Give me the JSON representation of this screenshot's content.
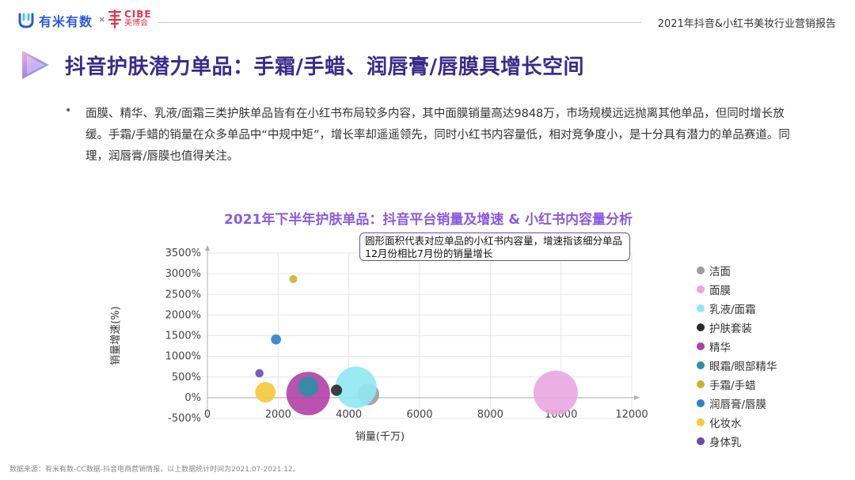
{
  "header": {
    "brand_name": "有米有数",
    "separator": "×",
    "partner_brand_en": "CIBE",
    "partner_brand_cn": "美博会",
    "report_title": "2021年抖音&小红书美妆行业营销报告"
  },
  "page": {
    "title": "抖音护肤潜力单品：手霜/手蜡、润唇膏/唇膜具增长空间",
    "bullet": "面膜、精华、乳液/面霜三类护肤单品皆有在小红书布局较多内容，其中面膜销量高达9848万，市场规模远远抛离其他单品，但同时增长放缓。手霜/手蜡的销量在众多单品中“中规中矩”，增长率却遥遥领先，同时小红书内容量低，相对竞争度小，是十分具有潜力的单品赛道。同理，润唇膏/唇膜也值得关注。"
  },
  "callout": {
    "text": "圆形面积代表对应单品的小红书内容量，增速指该细分单品12月份相比7月份的销量增长"
  },
  "footer": {
    "source": "数据来源：有米有数-CC数据-抖音电商营销情报，以上数据统计时间为2021.07-2021.12。"
  },
  "chart_data": {
    "type": "scatter",
    "title": "2021年下半年护肤单品：抖音平台销量及增速 & 小红书内容量分析",
    "xlabel": "销量(千万)",
    "ylabel": "销量增速(%)",
    "xlim": [
      0,
      12000
    ],
    "ylim": [
      -500,
      3500
    ],
    "x_ticks": [
      "0",
      "2000",
      "4000",
      "6000",
      "8000",
      "10000",
      "12000"
    ],
    "x_tick_values": [
      0,
      2000,
      4000,
      6000,
      8000,
      10000,
      12000
    ],
    "y_ticks": [
      "-500%",
      "0%",
      "500%",
      "1000%",
      "1500%",
      "2000%",
      "2500%",
      "3000%",
      "3500%"
    ],
    "y_tick_values": [
      -500,
      0,
      500,
      1000,
      1500,
      2000,
      2500,
      3000,
      3500
    ],
    "series": [
      {
        "name": "洁面",
        "color": "#9e9e9e",
        "x": 4550,
        "y": 80,
        "size": 380
      },
      {
        "name": "面膜",
        "color": "#eaa6e0",
        "x": 9848,
        "y": 120,
        "size": 1550
      },
      {
        "name": "乳液/面霜",
        "color": "#8fe8f2",
        "x": 4200,
        "y": 250,
        "size": 1350
      },
      {
        "name": "护肤套装",
        "color": "#2b2b2b",
        "x": 3650,
        "y": 180,
        "size": 100
      },
      {
        "name": "精华",
        "color": "#b23fa6",
        "x": 2850,
        "y": 100,
        "size": 1500
      },
      {
        "name": "眼霜/眼部精华",
        "color": "#2b8fa6",
        "x": 2850,
        "y": 270,
        "size": 320
      },
      {
        "name": "手霜/手蜡",
        "color": "#c9b52a",
        "x": 2430,
        "y": 2870,
        "size": 25
      },
      {
        "name": "润唇膏/唇膜",
        "color": "#2d7fcc",
        "x": 1940,
        "y": 1410,
        "size": 80
      },
      {
        "name": "化妆水",
        "color": "#f5c93a",
        "x": 1640,
        "y": 130,
        "size": 330
      },
      {
        "name": "身体乳",
        "color": "#6a4bb5",
        "x": 1470,
        "y": 590,
        "size": 55
      }
    ]
  }
}
